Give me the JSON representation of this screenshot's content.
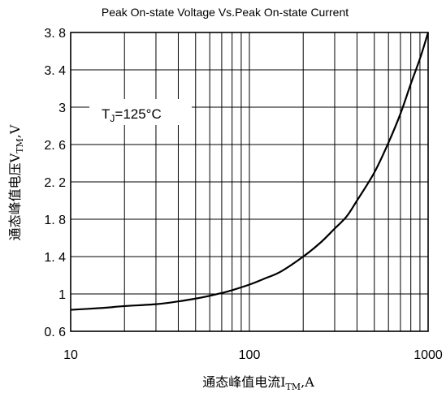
{
  "chart_data": {
    "type": "line",
    "title": "Peak On-state Voltage Vs.Peak On-state Current",
    "xlabel": {
      "main": "通态峰值电流I",
      "sub": "TM",
      "tail": ",A"
    },
    "ylabel": {
      "main": "通态峰值电压V",
      "sub": "TM",
      "tail": ",V"
    },
    "x_scale": "log",
    "xlim": [
      10,
      1000
    ],
    "ylim": [
      0.6,
      3.8
    ],
    "x_ticks": [
      10,
      100,
      1000
    ],
    "x_tick_labels": [
      "10",
      "100",
      "1000"
    ],
    "y_ticks": [
      0.6,
      1,
      1.4,
      1.8,
      2.2,
      2.6,
      3,
      3.4,
      3.8
    ],
    "y_tick_labels": [
      "0. 6",
      "1",
      "1. 4",
      "1. 8",
      "2. 2",
      "2. 6",
      "3",
      "3. 4",
      "3. 8"
    ],
    "grid": true,
    "annotation": {
      "main": "T",
      "sub": "J",
      "tail": "=125°C"
    },
    "series": [
      {
        "color": "#000000",
        "x": [
          10,
          15,
          20,
          30,
          40,
          50,
          60,
          70,
          80,
          100,
          120,
          150,
          200,
          250,
          300,
          350,
          400,
          500,
          600,
          700,
          800,
          900,
          1000
        ],
        "y": [
          0.83,
          0.85,
          0.87,
          0.89,
          0.92,
          0.95,
          0.98,
          1.01,
          1.04,
          1.1,
          1.16,
          1.24,
          1.4,
          1.55,
          1.7,
          1.83,
          2.0,
          2.3,
          2.62,
          2.93,
          3.25,
          3.52,
          3.8
        ]
      }
    ]
  }
}
